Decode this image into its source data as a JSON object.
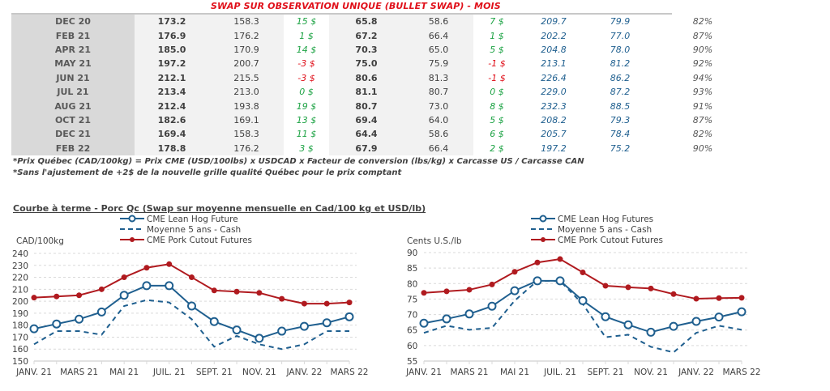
{
  "table": {
    "title": "SWAP SUR OBSERVATION UNIQUE (BULLET SWAP) - MOIS",
    "rows": [
      {
        "month": "DEC 20",
        "c1": "173.2",
        "c2": "158.3",
        "d1": "15 $",
        "d1_sign": "pos",
        "c3": "65.8",
        "c4": "58.6",
        "d2": "7 $",
        "d2_sign": "pos",
        "c5": "209.7",
        "c6": "79.9",
        "pct": "82%"
      },
      {
        "month": "FEB 21",
        "c1": "176.9",
        "c2": "176.2",
        "d1": "1 $",
        "d1_sign": "pos",
        "c3": "67.2",
        "c4": "66.4",
        "d2": "1 $",
        "d2_sign": "pos",
        "c5": "202.2",
        "c6": "77.0",
        "pct": "87%"
      },
      {
        "month": "APR 21",
        "c1": "185.0",
        "c2": "170.9",
        "d1": "14 $",
        "d1_sign": "pos",
        "c3": "70.3",
        "c4": "65.0",
        "d2": "5 $",
        "d2_sign": "pos",
        "c5": "204.8",
        "c6": "78.0",
        "pct": "90%"
      },
      {
        "month": "MAY 21",
        "c1": "197.2",
        "c2": "200.7",
        "d1": "-3 $",
        "d1_sign": "neg",
        "c3": "75.0",
        "c4": "75.9",
        "d2": "-1 $",
        "d2_sign": "neg",
        "c5": "213.1",
        "c6": "81.2",
        "pct": "92%"
      },
      {
        "month": "JUN 21",
        "c1": "212.1",
        "c2": "215.5",
        "d1": "-3 $",
        "d1_sign": "neg",
        "c3": "80.6",
        "c4": "81.3",
        "d2": "-1 $",
        "d2_sign": "neg",
        "c5": "226.4",
        "c6": "86.2",
        "pct": "94%"
      },
      {
        "month": "JUL 21",
        "c1": "213.4",
        "c2": "213.0",
        "d1": "0 $",
        "d1_sign": "pos",
        "c3": "81.1",
        "c4": "80.7",
        "d2": "0 $",
        "d2_sign": "pos",
        "c5": "229.0",
        "c6": "87.2",
        "pct": "93%"
      },
      {
        "month": "AUG 21",
        "c1": "212.4",
        "c2": "193.8",
        "d1": "19 $",
        "d1_sign": "pos",
        "c3": "80.7",
        "c4": "73.0",
        "d2": "8 $",
        "d2_sign": "pos",
        "c5": "232.3",
        "c6": "88.5",
        "pct": "91%"
      },
      {
        "month": "OCT 21",
        "c1": "182.6",
        "c2": "169.1",
        "d1": "13 $",
        "d1_sign": "pos",
        "c3": "69.4",
        "c4": "64.0",
        "d2": "5 $",
        "d2_sign": "pos",
        "c5": "208.2",
        "c6": "79.3",
        "pct": "87%"
      },
      {
        "month": "DEC 21",
        "c1": "169.4",
        "c2": "158.3",
        "d1": "11 $",
        "d1_sign": "pos",
        "c3": "64.4",
        "c4": "58.6",
        "d2": "6 $",
        "d2_sign": "pos",
        "c5": "205.7",
        "c6": "78.4",
        "pct": "82%"
      },
      {
        "month": "FEB 22",
        "c1": "178.8",
        "c2": "176.2",
        "d1": "3 $",
        "d1_sign": "pos",
        "c3": "67.9",
        "c4": "66.4",
        "d2": "2 $",
        "d2_sign": "pos",
        "c5": "197.2",
        "c6": "75.2",
        "pct": "90%"
      }
    ],
    "notes": [
      "*Prix Québec (CAD/100kg) = Prix CME (USD/100lbs) x USDCAD x Facteur de conversion (lbs/kg) x Carcasse US / Carcasse CAN",
      "*Sans l'ajustement de +2$ de la nouvelle grille qualité Québec pour le prix comptant"
    ]
  },
  "section_title": "Courbe à terme - Porc Qc (Swap sur moyenne mensuelle en Cad/100 kg et USD/lb)",
  "colors": {
    "lean_hog": "#1f5f8f",
    "cash_avg": "#1f5f8f",
    "pork_cutout": "#b01a1f",
    "grid": "#d9d9d9",
    "positive": "#1ea345",
    "negative": "#e0101a"
  },
  "chart_data": [
    {
      "type": "line",
      "title": "",
      "xlabel": "",
      "ylabel": "CAD/100kg",
      "ylim": [
        150,
        240
      ],
      "yticks": [
        150,
        160,
        170,
        180,
        190,
        200,
        210,
        220,
        230,
        240
      ],
      "grid": true,
      "legend_position": "top-center",
      "x": [
        "JANV. 21",
        "FÉVR. 21",
        "MARS 21",
        "AVR. 21",
        "MAI 21",
        "JUIN 21",
        "JUIL. 21",
        "AOÛT 21",
        "SEPT. 21",
        "OCT. 21",
        "NOV. 21",
        "DÉC. 21",
        "JANV. 22",
        "FÉVR. 22",
        "MARS 22"
      ],
      "xtick_labels": [
        "JANV. 21",
        "",
        "MARS 21",
        "",
        "MAI 21",
        "",
        "JUIL. 21",
        "",
        "SEPT. 21",
        "",
        "NOV. 21",
        "",
        "JANV. 22",
        "",
        "MARS 22"
      ],
      "series": [
        {
          "name": "CME Lean Hog Future",
          "style": "solid-open-circle",
          "values": [
            177,
            181,
            185,
            191,
            205,
            213,
            213,
            196,
            183,
            176,
            169,
            175,
            179,
            182,
            187
          ]
        },
        {
          "name": "Moyenne 5 ans - Cash",
          "style": "dashed",
          "values": [
            164,
            175,
            175,
            172,
            196,
            201,
            199,
            185,
            162,
            171,
            164,
            160,
            164,
            175,
            175
          ]
        },
        {
          "name": "CME Pork Cutout Futures",
          "style": "solid-filled-dot",
          "values": [
            203,
            204,
            205,
            210,
            220,
            228,
            231,
            220,
            209,
            208,
            207,
            202,
            198,
            198,
            199
          ]
        }
      ]
    },
    {
      "type": "line",
      "title": "",
      "xlabel": "",
      "ylabel": "Cents U.S./lb",
      "ylim": [
        55,
        90
      ],
      "yticks": [
        55,
        60,
        65,
        70,
        75,
        80,
        85,
        90
      ],
      "grid": true,
      "legend_position": "top-center",
      "x": [
        "JANV. 21",
        "FÉVR. 21",
        "MARS 21",
        "AVR. 21",
        "MAI 21",
        "JUIN 21",
        "JUIL. 21",
        "AOÛT 21",
        "SEPT. 21",
        "OCT. 21",
        "NOV. 21",
        "DÉC. 21",
        "JANV. 22",
        "FÉVR. 22",
        "MARS 22"
      ],
      "xtick_labels": [
        "JANV. 21",
        "",
        "MARS 21",
        "",
        "MAI 21",
        "",
        "JUIL. 21",
        "",
        "SEPT. 21",
        "",
        "NOV. 21",
        "",
        "JANV. 22",
        "",
        "MARS 22"
      ],
      "series": [
        {
          "name": "CME Lean Hog Futures",
          "style": "solid-open-circle",
          "values": [
            67.2,
            68.6,
            70.2,
            72.7,
            77.7,
            80.9,
            80.9,
            74.5,
            69.3,
            66.7,
            64.3,
            66.2,
            67.8,
            69.2,
            70.9
          ]
        },
        {
          "name": "Moyenne 5 ans - Cash",
          "style": "dashed",
          "values": [
            64.1,
            66.4,
            65.1,
            65.7,
            74.5,
            80.9,
            80.8,
            73.4,
            62.7,
            63.5,
            59.6,
            57.8,
            64.1,
            66.4,
            65.1
          ]
        },
        {
          "name": "CME Pork Cutout Futures",
          "style": "solid-filled-dot",
          "values": [
            77.0,
            77.5,
            78.0,
            79.7,
            83.8,
            86.8,
            87.9,
            83.6,
            79.3,
            78.8,
            78.4,
            76.6,
            75.1,
            75.3,
            75.4
          ]
        }
      ]
    }
  ]
}
